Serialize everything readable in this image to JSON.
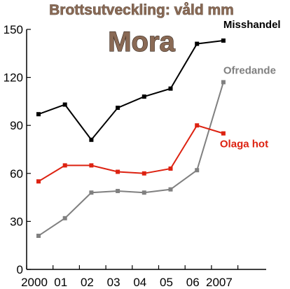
{
  "chart_data": {
    "type": "line",
    "title": "Brottsutveckling: våld mm",
    "subtitle": "Mora",
    "categories": [
      "2000",
      "01",
      "02",
      "03",
      "04",
      "05",
      "06",
      "2007"
    ],
    "ylim": [
      0,
      150
    ],
    "yticks": [
      0,
      30,
      60,
      90,
      120,
      150
    ],
    "grid": false,
    "series": [
      {
        "name": "Misshandel",
        "color": "#000000",
        "values": [
          97,
          103,
          81,
          101,
          108,
          113,
          141,
          143
        ]
      },
      {
        "name": "Ofredande",
        "color": "#808080",
        "values": [
          21,
          32,
          48,
          49,
          48,
          50,
          62,
          117
        ]
      },
      {
        "name": "Olaga hot",
        "color": "#dd2211",
        "values": [
          55,
          65,
          65,
          61,
          60,
          63,
          90,
          85
        ]
      }
    ]
  }
}
